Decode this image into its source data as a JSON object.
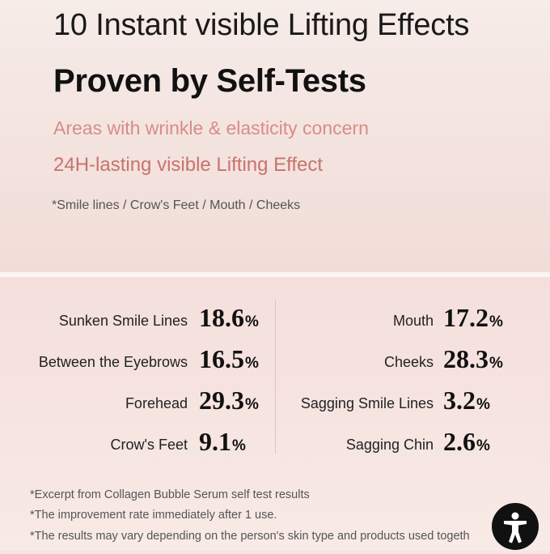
{
  "header": {
    "headline": "10 Instant visible Lifting Effects",
    "subheadline": "Proven by Self-Tests",
    "concern": "Areas with wrinkle & elasticity concern",
    "lasting": "24H-lasting visible Lifting Effect",
    "areas_note": "*Smile lines / Crow's Feet / Mouth / Cheeks"
  },
  "stats": {
    "left": [
      {
        "label": "Sunken Smile Lines",
        "value": "18.6",
        "unit": "%"
      },
      {
        "label": "Between the Eyebrows",
        "value": "16.5",
        "unit": "%"
      },
      {
        "label": "Forehead",
        "value": "29.3",
        "unit": "%"
      },
      {
        "label": "Crow's Feet",
        "value": "9.1",
        "unit": "%"
      }
    ],
    "right": [
      {
        "label": "Mouth",
        "value": "17.2",
        "unit": "%"
      },
      {
        "label": "Cheeks",
        "value": "28.3",
        "unit": "%"
      },
      {
        "label": "Sagging Smile Lines",
        "value": "3.2",
        "unit": "%"
      },
      {
        "label": "Sagging Chin",
        "value": "2.6",
        "unit": "%"
      }
    ]
  },
  "footnotes": [
    "*Excerpt from Collagen Bubble Serum self test results",
    "*The improvement rate immediately after 1 use.",
    "*The results may vary depending on the person's skin type and products used togeth"
  ],
  "accessibility_button": {
    "icon": "accessibility-icon"
  }
}
